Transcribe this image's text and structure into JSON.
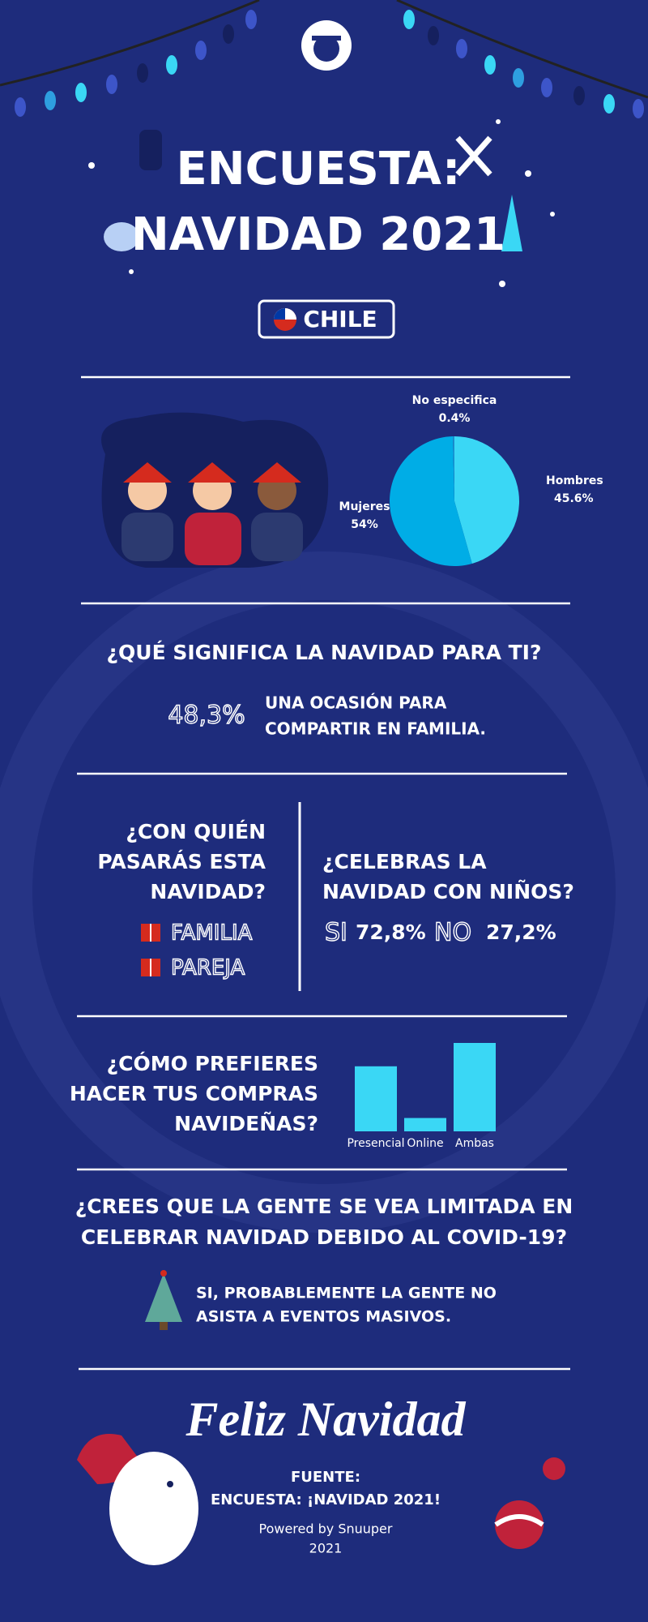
{
  "header": {
    "title_lines": [
      "ENCUESTA:",
      "NAVIDAD 2021"
    ],
    "country": "CHILE"
  },
  "chart_data": [
    {
      "type": "pie",
      "categories": [
        "Hombres",
        "Mujeres",
        "No especifica"
      ],
      "values": [
        45.6,
        54,
        0.4
      ],
      "value_labels": [
        "45.6%",
        "54%",
        "0.4%"
      ],
      "colors": [
        "#3ad7f5",
        "#00ade6",
        "#1a8fd0"
      ]
    },
    {
      "type": "bar",
      "categories": [
        "Presencial",
        "Online",
        "Ambas"
      ],
      "values": [
        39,
        8,
        53
      ],
      "color": "#3ad7f5"
    }
  ],
  "q1": {
    "question": "¿QUÉ SIGNIFICA LA NAVIDAD PARA TI?",
    "percent": "48,3%",
    "answer_lines": [
      "UNA OCASIÓN PARA",
      "COMPARTIR EN FAMILIA."
    ]
  },
  "q2": {
    "question_lines": [
      "¿CON QUIÉN",
      "PASARÁS ESTA",
      "NAVIDAD?"
    ],
    "answers": [
      "FAMILIA",
      "PAREJA"
    ]
  },
  "q3": {
    "question_lines": [
      "¿CELEBRAS LA",
      "NAVIDAD CON NIÑOS?"
    ],
    "yes_label": "SI",
    "yes_percent": "72,8%",
    "no_label": "NO",
    "no_percent": "27,2%"
  },
  "q4": {
    "question_lines": [
      "¿CÓMO PREFIERES",
      "HACER TUS COMPRAS",
      "NAVIDEÑAS?"
    ]
  },
  "q5": {
    "question_lines": [
      "¿CREES QUE LA GENTE SE VEA LIMITADA EN",
      "CELEBRAR NAVIDAD DEBIDO AL COVID-19?"
    ],
    "answer_lines": [
      "SI, PROBABLEMENTE LA GENTE NO",
      "ASISTA A EVENTOS MASIVOS."
    ]
  },
  "footer": {
    "greeting": "Feliz Navidad",
    "source_label": "FUENTE:",
    "source": "ENCUESTA: ¡NAVIDAD 2021!",
    "powered_by": "Powered by Snuuper",
    "year": "2021"
  }
}
